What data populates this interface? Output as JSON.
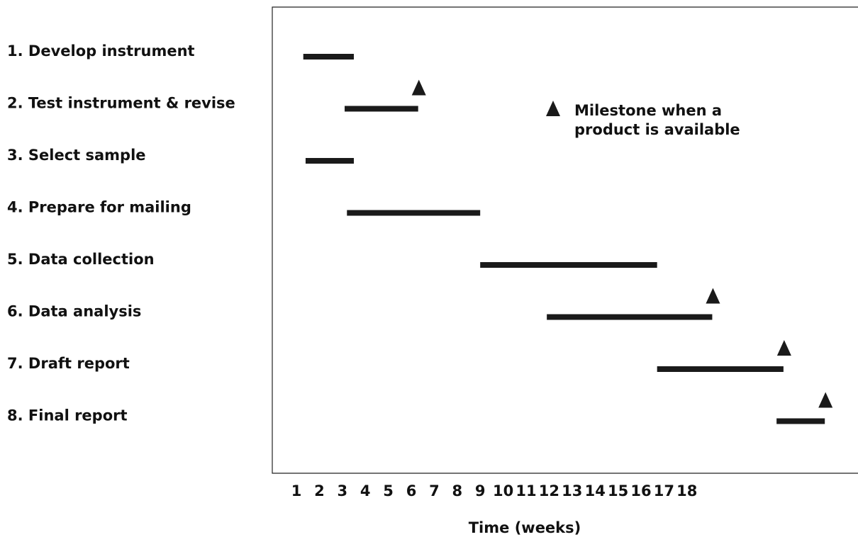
{
  "chart_data": {
    "type": "gantt",
    "xlabel": "Time (weeks)",
    "xlim": [
      1,
      18
    ],
    "ticks": [
      "1",
      "2",
      "3",
      "4",
      "5",
      "6",
      "7",
      "8",
      "9",
      "10",
      "11",
      "12",
      "13",
      "14",
      "15",
      "16",
      "17",
      "18"
    ],
    "grid": false,
    "bar_color": "#1a1a1a",
    "tasks": [
      {
        "label": "1. Develop instrument",
        "start": 1.3,
        "end": 3.5,
        "milestone": null
      },
      {
        "label": "2. Test instrument & revise",
        "start": 3.1,
        "end": 6.3,
        "milestone": 6.3
      },
      {
        "label": "3. Select sample",
        "start": 1.4,
        "end": 3.5,
        "milestone": null
      },
      {
        "label": "4. Prepare for mailing",
        "start": 3.2,
        "end": 9.0,
        "milestone": null
      },
      {
        "label": "5. Data collection",
        "start": 9.0,
        "end": 16.7,
        "milestone": null
      },
      {
        "label": "6. Data analysis",
        "start": 11.9,
        "end": 19.1,
        "milestone": 19.1
      },
      {
        "label": "7. Draft report",
        "start": 16.7,
        "end": 22.2,
        "milestone": 22.2
      },
      {
        "label": "8. Final report",
        "start": 21.9,
        "end": 24.0,
        "milestone": 24.0
      }
    ],
    "legend": {
      "symbol": "triangle",
      "text_lines": [
        "Milestone when a",
        "product is available"
      ],
      "placement": "top-right"
    }
  }
}
